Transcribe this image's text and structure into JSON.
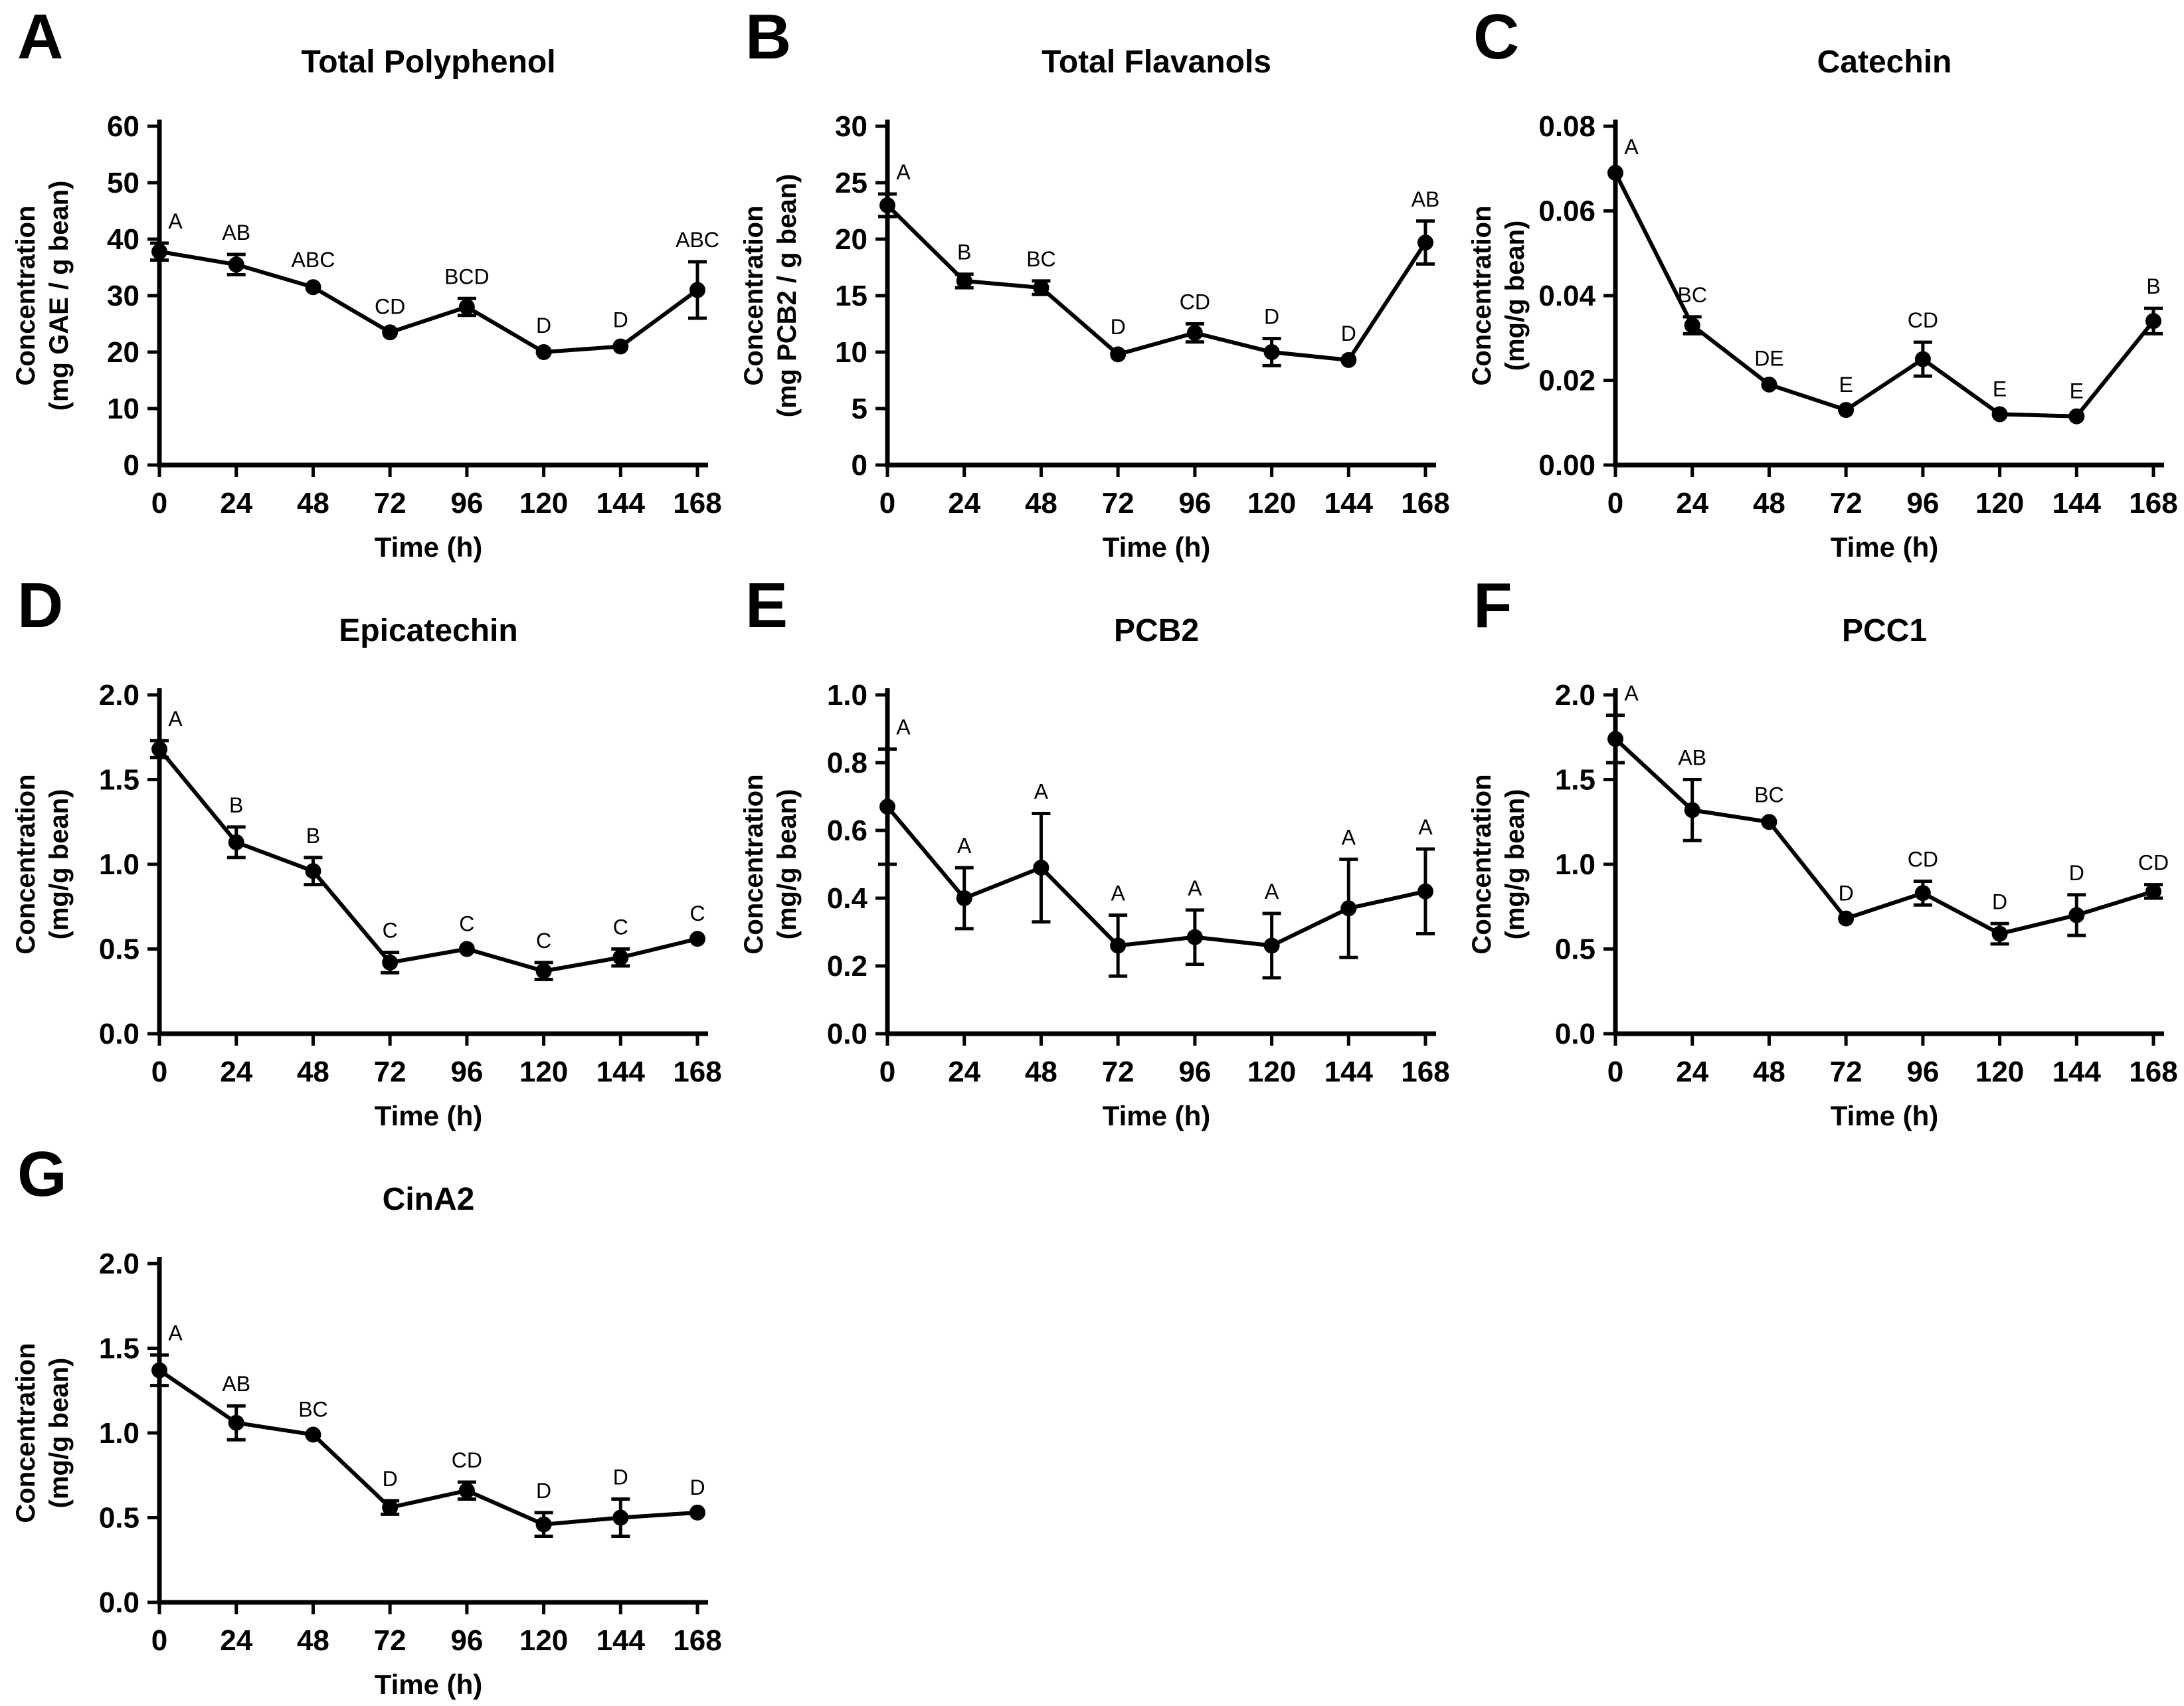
{
  "figure": {
    "xlabel": "Time (h)",
    "x_tick_labels": [
      "0",
      "24",
      "48",
      "72",
      "96",
      "120",
      "144",
      "168"
    ],
    "series_color": "#000000",
    "background_color": "#ffffff",
    "marker": "circle",
    "grid": false,
    "legend": "none"
  },
  "chart_data": [
    {
      "type": "line",
      "panel": "A",
      "title": "Total Polyphenol",
      "xlabel": "Time (h)",
      "ylabel_line1": "Concentration",
      "ylabel_line2": "(mg GAE / g bean)",
      "ylim": [
        0,
        60
      ],
      "yticks": [
        "0",
        "10",
        "20",
        "30",
        "40",
        "50",
        "60"
      ],
      "x": [
        "0",
        "24",
        "48",
        "72",
        "96",
        "120",
        "144",
        "168"
      ],
      "values": [
        37.8,
        35.5,
        31.5,
        23.5,
        28.0,
        20.0,
        21.0,
        31.0
      ],
      "errors": [
        1.5,
        1.8,
        1.0,
        0.7,
        1.5,
        0.8,
        0.8,
        5.0
      ],
      "annotations": [
        "A",
        "AB",
        "ABC",
        "CD",
        "BCD",
        "D",
        "D",
        "ABC"
      ]
    },
    {
      "type": "line",
      "panel": "B",
      "title": "Total Flavanols",
      "xlabel": "Time (h)",
      "ylabel_line1": "Concentration",
      "ylabel_line2": "(mg PCB2 / g bean)",
      "ylim": [
        0,
        30
      ],
      "yticks": [
        "0",
        "5",
        "10",
        "15",
        "20",
        "25",
        "30"
      ],
      "x": [
        "0",
        "24",
        "48",
        "72",
        "96",
        "120",
        "144",
        "168"
      ],
      "values": [
        23.0,
        16.3,
        15.7,
        9.8,
        11.7,
        10.0,
        9.3,
        19.7
      ],
      "errors": [
        1.0,
        0.6,
        0.6,
        0.5,
        0.8,
        1.2,
        0.4,
        1.9
      ],
      "annotations": [
        "A",
        "B",
        "BC",
        "D",
        "CD",
        "D",
        "D",
        "AB"
      ]
    },
    {
      "type": "line",
      "panel": "C",
      "title": "Catechin",
      "xlabel": "Time (h)",
      "ylabel_line1": "Concentration",
      "ylabel_line2": "(mg/g bean)",
      "ylim": [
        0,
        0.08
      ],
      "yticks": [
        "0.00",
        "0.02",
        "0.04",
        "0.06",
        "0.08"
      ],
      "x": [
        "0",
        "24",
        "48",
        "72",
        "96",
        "120",
        "144",
        "168"
      ],
      "values": [
        0.069,
        0.033,
        0.019,
        0.013,
        0.025,
        0.012,
        0.0115,
        0.034
      ],
      "errors": [
        0.001,
        0.002,
        0.001,
        0.0008,
        0.004,
        0.0008,
        0.0008,
        0.003
      ],
      "annotations": [
        "A",
        "BC",
        "DE",
        "E",
        "CD",
        "E",
        "E",
        "B"
      ]
    },
    {
      "type": "line",
      "panel": "D",
      "title": "Epicatechin",
      "xlabel": "Time (h)",
      "ylabel_line1": "Concentration",
      "ylabel_line2": "(mg/g bean)",
      "ylim": [
        0,
        2.0
      ],
      "yticks": [
        "0.0",
        "0.5",
        "1.0",
        "1.5",
        "2.0"
      ],
      "x": [
        "0",
        "24",
        "48",
        "72",
        "96",
        "120",
        "144",
        "168"
      ],
      "values": [
        1.68,
        1.13,
        0.96,
        0.42,
        0.5,
        0.37,
        0.45,
        0.56
      ],
      "errors": [
        0.05,
        0.09,
        0.08,
        0.06,
        0.02,
        0.05,
        0.05,
        0.02
      ],
      "annotations": [
        "A",
        "B",
        "B",
        "C",
        "C",
        "C",
        "C",
        "C"
      ]
    },
    {
      "type": "line",
      "panel": "E",
      "title": "PCB2",
      "xlabel": "Time (h)",
      "ylabel_line1": "Concentration",
      "ylabel_line2": "(mg/g bean)",
      "ylim": [
        0,
        1.0
      ],
      "yticks": [
        "0.0",
        "0.2",
        "0.4",
        "0.6",
        "0.8",
        "1.0"
      ],
      "x": [
        "0",
        "24",
        "48",
        "72",
        "96",
        "120",
        "144",
        "168"
      ],
      "values": [
        0.67,
        0.4,
        0.49,
        0.26,
        0.285,
        0.26,
        0.37,
        0.42
      ],
      "errors": [
        0.17,
        0.09,
        0.16,
        0.09,
        0.08,
        0.095,
        0.145,
        0.125
      ],
      "annotations": [
        "A",
        "A",
        "A",
        "A",
        "A",
        "A",
        "A",
        "A"
      ]
    },
    {
      "type": "line",
      "panel": "F",
      "title": "PCC1",
      "xlabel": "Time (h)",
      "ylabel_line1": "Concentration",
      "ylabel_line2": "(mg/g bean)",
      "ylim": [
        0,
        2.0
      ],
      "yticks": [
        "0.0",
        "0.5",
        "1.0",
        "1.5",
        "2.0"
      ],
      "x": [
        "0",
        "24",
        "48",
        "72",
        "96",
        "120",
        "144",
        "168"
      ],
      "values": [
        1.74,
        1.32,
        1.25,
        0.68,
        0.83,
        0.59,
        0.7,
        0.84
      ],
      "errors": [
        0.14,
        0.18,
        0.03,
        0.02,
        0.07,
        0.06,
        0.12,
        0.04
      ],
      "annotations": [
        "A",
        "AB",
        "BC",
        "D",
        "CD",
        "D",
        "D",
        "CD"
      ]
    },
    {
      "type": "line",
      "panel": "G",
      "title": "CinA2",
      "xlabel": "Time (h)",
      "ylabel_line1": "Concentration",
      "ylabel_line2": "(mg/g bean)",
      "ylim": [
        0,
        2.0
      ],
      "yticks": [
        "0.0",
        "0.5",
        "1.0",
        "1.5",
        "2.0"
      ],
      "x": [
        "0",
        "24",
        "48",
        "72",
        "96",
        "120",
        "144",
        "168"
      ],
      "values": [
        1.37,
        1.06,
        0.99,
        0.56,
        0.66,
        0.46,
        0.5,
        0.53
      ],
      "errors": [
        0.09,
        0.1,
        0.02,
        0.04,
        0.05,
        0.07,
        0.11,
        0.02
      ],
      "annotations": [
        "A",
        "AB",
        "BC",
        "D",
        "CD",
        "D",
        "D",
        "D"
      ]
    }
  ]
}
